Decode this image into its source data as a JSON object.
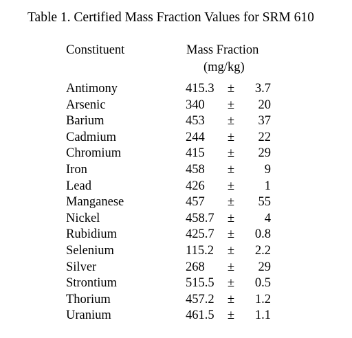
{
  "table": {
    "title": "Table 1.  Certified Mass Fraction Values for SRM 610",
    "header": {
      "constituent": "Constituent",
      "mass_fraction": "Mass Fraction",
      "unit": "(mg/kg)"
    },
    "rows": [
      {
        "name": "Antimony",
        "value": "415.3",
        "pm": "±",
        "unc": "3.7"
      },
      {
        "name": "Arsenic",
        "value": "340",
        "pm": "±",
        "unc": "20"
      },
      {
        "name": "Barium",
        "value": "453",
        "pm": "±",
        "unc": "37"
      },
      {
        "name": "Cadmium",
        "value": "244",
        "pm": "±",
        "unc": "22"
      },
      {
        "name": "Chromium",
        "value": "415",
        "pm": "±",
        "unc": "29"
      },
      {
        "name": "Iron",
        "value": "458",
        "pm": "±",
        "unc": "9"
      },
      {
        "name": "Lead",
        "value": "426",
        "pm": "±",
        "unc": "1"
      },
      {
        "name": "Manganese",
        "value": "457",
        "pm": "±",
        "unc": "55"
      },
      {
        "name": "Nickel",
        "value": "458.7",
        "pm": "±",
        "unc": "4"
      },
      {
        "name": "Rubidium",
        "value": "425.7",
        "pm": "±",
        "unc": "0.8"
      },
      {
        "name": "Selenium",
        "value": "115.2",
        "pm": "±",
        "unc": "2.2"
      },
      {
        "name": "Silver",
        "value": "268",
        "pm": "±",
        "unc": "29"
      },
      {
        "name": "Strontium",
        "value": "515.5",
        "pm": "±",
        "unc": "0.5"
      },
      {
        "name": "Thorium",
        "value": "457.2",
        "pm": "±",
        "unc": "1.2"
      },
      {
        "name": "Uranium",
        "value": "461.5",
        "pm": "±",
        "unc": "1.1"
      }
    ]
  }
}
